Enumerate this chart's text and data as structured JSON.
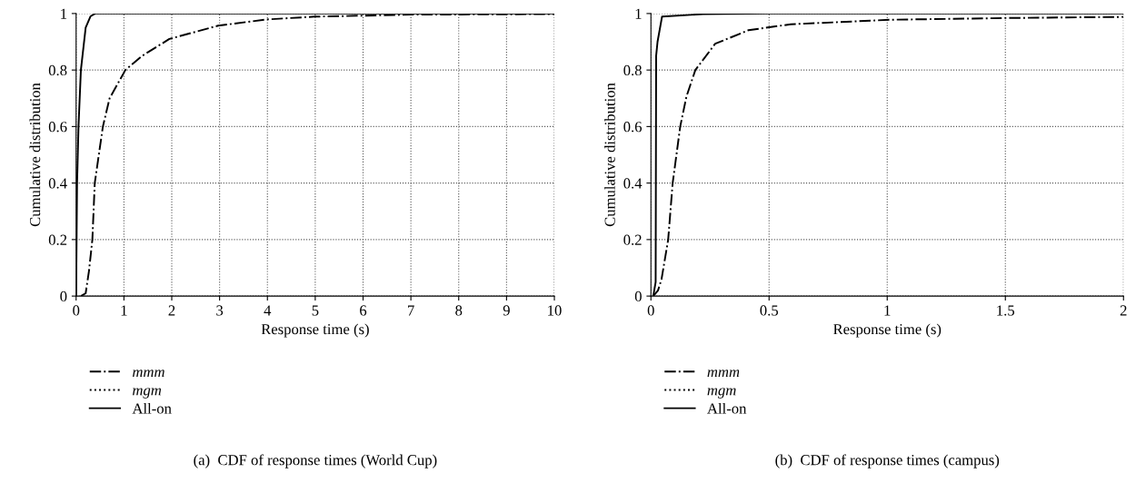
{
  "chart_data": [
    {
      "type": "line",
      "xlabel": "Response time (s)",
      "ylabel": "Cumulative distribution",
      "xlim": [
        0,
        10
      ],
      "ylim": [
        0,
        1
      ],
      "xticks": [
        0,
        1,
        2,
        3,
        4,
        5,
        6,
        7,
        8,
        9,
        10
      ],
      "yticks": [
        0,
        0.2,
        0.4,
        0.6,
        0.8,
        1
      ],
      "grid": true,
      "legend": "bottom",
      "annotations": [
        "(a)  CDF of response times (World Cup)"
      ],
      "series": [
        {
          "name": "mmm",
          "color": "#000000",
          "line_style": "dashdot",
          "x": [
            0.1,
            0.2,
            0.27,
            0.34,
            0.39,
            0.56,
            0.7,
            1.03,
            1.38,
            1.95,
            2.97,
            3.98,
            4.99,
            7,
            10
          ],
          "values": [
            0,
            0.01,
            0.09,
            0.2,
            0.4,
            0.6,
            0.7,
            0.8,
            0.85,
            0.91,
            0.957,
            0.979,
            0.989,
            0.996,
            0.998
          ]
        },
        {
          "name": "mgm",
          "color": "#000000",
          "line_style": "dotted"
        },
        {
          "name": "All-on",
          "color": "#000000",
          "line_style": "solid",
          "x": [
            0,
            0.02,
            0.05,
            0.1,
            0.2,
            0.3,
            0.4,
            10
          ],
          "values": [
            0,
            0.4,
            0.6,
            0.8,
            0.95,
            0.99,
            1,
            1
          ]
        }
      ]
    },
    {
      "type": "line",
      "xlabel": "Response time (s)",
      "ylabel": "Cumulative distribution",
      "xlim": [
        0,
        2
      ],
      "ylim": [
        0,
        1
      ],
      "xticks": [
        0,
        0.5,
        1,
        1.5,
        2
      ],
      "yticks": [
        0,
        0.2,
        0.4,
        0.6,
        0.8,
        1
      ],
      "grid": true,
      "legend": "bottom",
      "annotations": [
        "(b)  CDF of response times (campus)"
      ],
      "series": [
        {
          "name": "mmm",
          "color": "#000000",
          "line_style": "dashdot",
          "x": [
            0.01,
            0.03,
            0.045,
            0.054,
            0.073,
            0.092,
            0.124,
            0.15,
            0.188,
            0.272,
            0.413,
            0.592,
            1.015,
            1.5,
            2
          ],
          "values": [
            0,
            0.02,
            0.06,
            0.105,
            0.2,
            0.4,
            0.6,
            0.705,
            0.8,
            0.893,
            0.941,
            0.962,
            0.978,
            0.984,
            0.988
          ]
        },
        {
          "name": "mgm",
          "color": "#000000",
          "line_style": "dotted"
        },
        {
          "name": "All-on",
          "color": "#000000",
          "line_style": "solid",
          "x": [
            0.01,
            0.02,
            0.022,
            0.028,
            0.047,
            0.22,
            0.5,
            2
          ],
          "values": [
            0,
            0.05,
            0.85,
            0.9,
            0.989,
            0.998,
            1,
            1
          ]
        }
      ]
    }
  ]
}
